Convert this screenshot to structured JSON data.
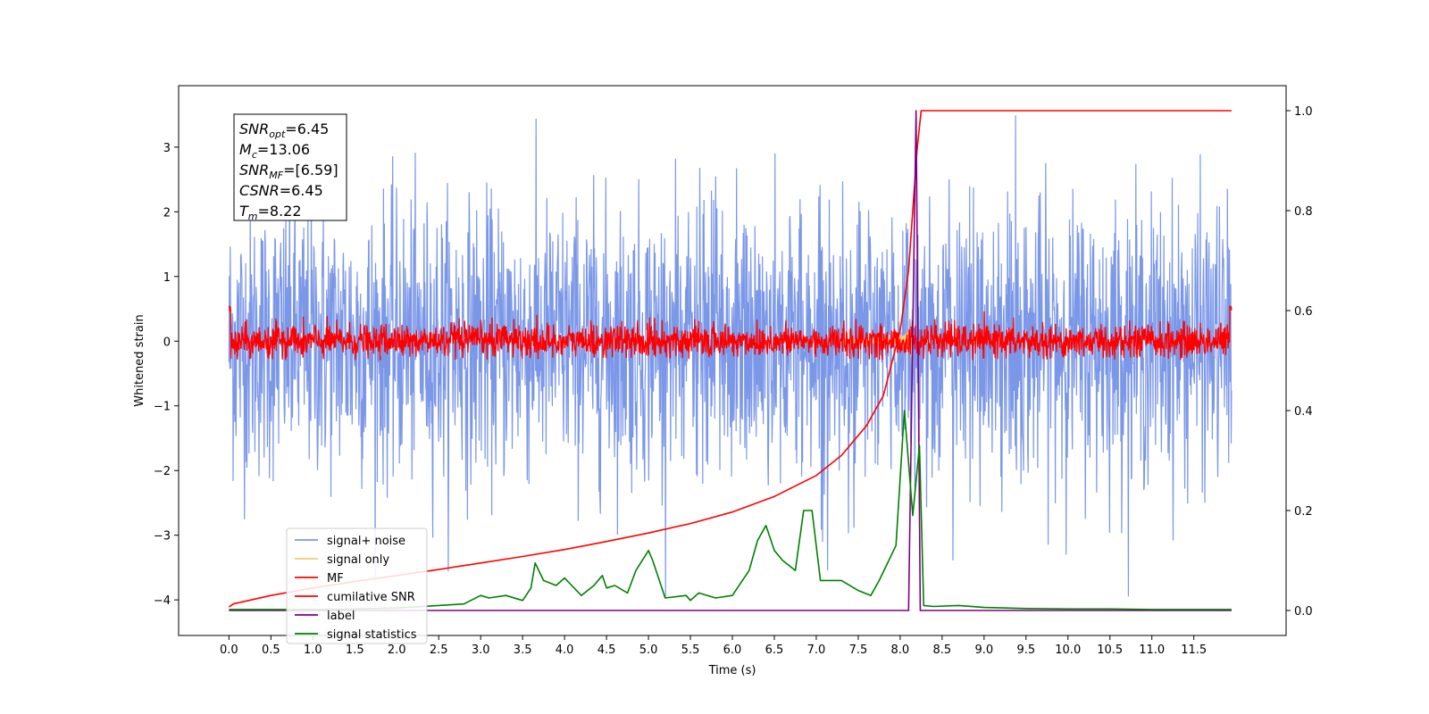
{
  "chart_data": {
    "type": "line",
    "xlabel": "Time (s)",
    "ylabel": "Whitened strain",
    "xlim": [
      -0.6,
      12.6
    ],
    "ylim_left": [
      -4.55,
      3.95
    ],
    "ylim_right": [
      -0.05,
      1.05
    ],
    "x_ticks": [
      "0.0",
      "0.5",
      "1.0",
      "1.5",
      "2.0",
      "2.5",
      "3.0",
      "3.5",
      "4.0",
      "4.5",
      "5.0",
      "5.5",
      "6.0",
      "6.5",
      "7.0",
      "7.5",
      "8.0",
      "8.5",
      "9.0",
      "9.5",
      "10.0",
      "10.5",
      "11.0",
      "11.5"
    ],
    "y_ticks_left": [
      "3",
      "2",
      "1",
      "0",
      "−1",
      "−2",
      "−3",
      "−4"
    ],
    "y_ticks_right": [
      "1.0",
      "0.8",
      "0.6",
      "0.4",
      "0.2",
      "0.0"
    ],
    "stats": [
      {
        "name": "SNR",
        "sub": "opt",
        "value": "=6.45"
      },
      {
        "name": "M",
        "sub": "c",
        "value": "=13.06"
      },
      {
        "name": "SNR",
        "sub": "MF",
        "value": "=[6.59]"
      },
      {
        "name": "CSNR",
        "sub": "",
        "value": "=6.45"
      },
      {
        "name": "T",
        "sub": "m",
        "value": "=8.22"
      }
    ],
    "legend_position": "lower-left",
    "series": [
      {
        "name": "signal+ noise",
        "color": "#7b97e8",
        "axis": "left",
        "kind": "noise",
        "amplitude_range": [
          -4.1,
          3.6
        ]
      },
      {
        "name": "signal only",
        "color": "#f5c878",
        "axis": "left",
        "kind": "chirp",
        "peak_time": 8.15,
        "peak_amplitude": 0.5
      },
      {
        "name": "MF",
        "color": "#ff0000",
        "axis": "left",
        "kind": "noise",
        "amplitude_range": [
          -0.3,
          0.55
        ]
      },
      {
        "name": "cumilative SNR",
        "color": "#ff0000",
        "axis": "right",
        "x": [
          0.0,
          0.05,
          0.5,
          1.0,
          1.5,
          2.0,
          2.5,
          3.0,
          3.5,
          4.0,
          4.5,
          5.0,
          5.5,
          6.0,
          6.5,
          7.0,
          7.3,
          7.6,
          7.8,
          8.0,
          8.1,
          8.15,
          8.2,
          8.25,
          11.95
        ],
        "y": [
          0.007,
          0.013,
          0.03,
          0.045,
          0.058,
          0.07,
          0.082,
          0.095,
          0.108,
          0.122,
          0.138,
          0.155,
          0.174,
          0.197,
          0.228,
          0.27,
          0.31,
          0.37,
          0.43,
          0.56,
          0.68,
          0.8,
          0.92,
          1.0,
          1.0
        ]
      },
      {
        "name": "label",
        "color": "#800080",
        "axis": "right",
        "x": [
          0.0,
          8.1,
          8.19,
          8.24,
          11.95
        ],
        "y": [
          0.0,
          0.0,
          1.0,
          0.0,
          0.0
        ]
      },
      {
        "name": "signal statistics",
        "color": "#008000",
        "axis": "right",
        "x": [
          0.0,
          0.5,
          1.0,
          1.5,
          2.0,
          2.5,
          2.8,
          3.0,
          3.1,
          3.3,
          3.5,
          3.6,
          3.65,
          3.75,
          3.9,
          4.0,
          4.2,
          4.35,
          4.45,
          4.5,
          4.6,
          4.75,
          4.85,
          5.0,
          5.05,
          5.2,
          5.45,
          5.5,
          5.6,
          5.8,
          6.0,
          6.2,
          6.3,
          6.4,
          6.5,
          6.6,
          6.75,
          6.85,
          6.95,
          7.05,
          7.3,
          7.5,
          7.65,
          7.75,
          7.95,
          8.05,
          8.15,
          8.23,
          8.28,
          8.4,
          8.7,
          9.0,
          9.5,
          10.0,
          10.5,
          11.0,
          11.5,
          11.95
        ],
        "y": [
          0.002,
          0.002,
          0.002,
          0.003,
          0.005,
          0.01,
          0.013,
          0.03,
          0.025,
          0.03,
          0.02,
          0.045,
          0.095,
          0.06,
          0.05,
          0.065,
          0.03,
          0.05,
          0.07,
          0.045,
          0.05,
          0.035,
          0.08,
          0.12,
          0.1,
          0.025,
          0.03,
          0.02,
          0.035,
          0.025,
          0.03,
          0.08,
          0.14,
          0.17,
          0.12,
          0.1,
          0.08,
          0.2,
          0.2,
          0.06,
          0.06,
          0.04,
          0.03,
          0.06,
          0.13,
          0.4,
          0.19,
          0.33,
          0.01,
          0.008,
          0.01,
          0.006,
          0.004,
          0.003,
          0.003,
          0.002,
          0.002,
          0.002
        ]
      }
    ]
  }
}
